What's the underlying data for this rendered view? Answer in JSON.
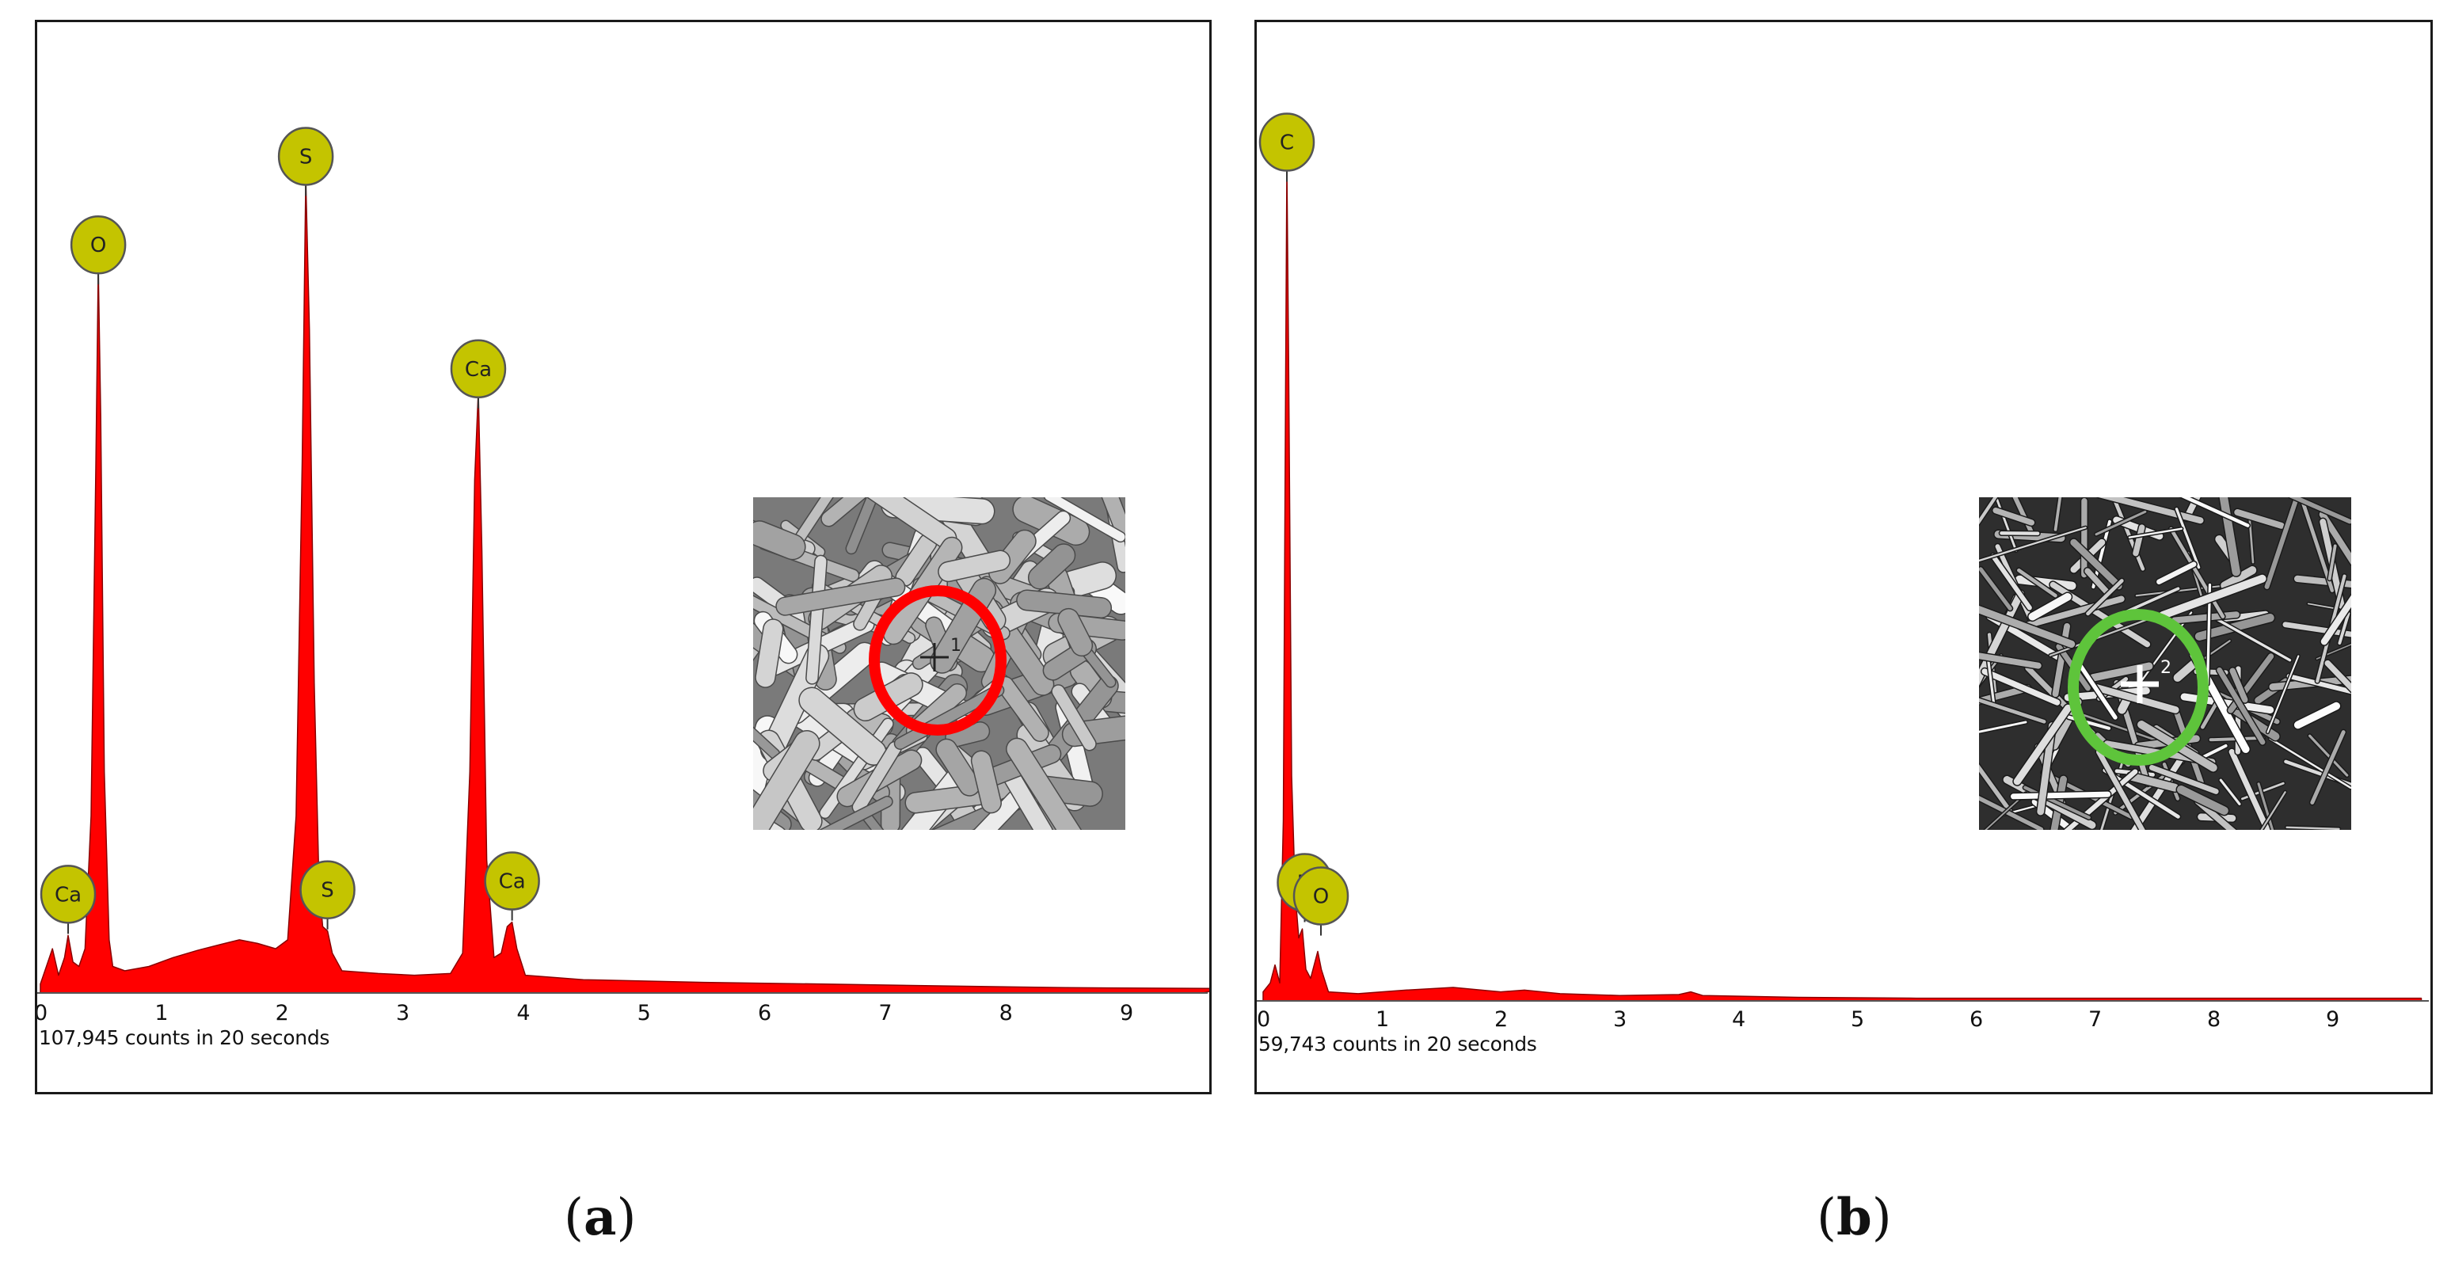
{
  "chart_data": [
    {
      "type": "area",
      "panel_label": "a",
      "footer": "107,945 counts in 20 seconds",
      "x_tick_labels": [
        "0",
        "1",
        "2",
        "3",
        "4",
        "5",
        "6",
        "7",
        "8",
        "9"
      ],
      "xlim": [
        0,
        9.8
      ],
      "ylim": [
        0,
        1
      ],
      "fill_color": "#ff0000",
      "series": [
        {
          "values": [
            [
              0,
              0.01
            ],
            [
              0.05,
              0.03
            ],
            [
              0.1,
              0.05
            ],
            [
              0.15,
              0.02
            ],
            [
              0.2,
              0.04
            ],
            [
              0.23,
              0.065
            ],
            [
              0.27,
              0.035
            ],
            [
              0.32,
              0.03
            ],
            [
              0.37,
              0.05
            ],
            [
              0.42,
              0.2
            ],
            [
              0.46,
              0.6
            ],
            [
              0.48,
              0.82
            ],
            [
              0.5,
              0.65
            ],
            [
              0.53,
              0.25
            ],
            [
              0.57,
              0.06
            ],
            [
              0.6,
              0.03
            ],
            [
              0.7,
              0.025
            ],
            [
              0.9,
              0.03
            ],
            [
              1.1,
              0.04
            ],
            [
              1.3,
              0.048
            ],
            [
              1.5,
              0.055
            ],
            [
              1.65,
              0.06
            ],
            [
              1.8,
              0.056
            ],
            [
              1.95,
              0.05
            ],
            [
              2.05,
              0.06
            ],
            [
              2.12,
              0.2
            ],
            [
              2.17,
              0.6
            ],
            [
              2.2,
              0.92
            ],
            [
              2.23,
              0.75
            ],
            [
              2.27,
              0.35
            ],
            [
              2.31,
              0.12
            ],
            [
              2.34,
              0.075
            ],
            [
              2.38,
              0.07
            ],
            [
              2.42,
              0.045
            ],
            [
              2.5,
              0.025
            ],
            [
              2.8,
              0.022
            ],
            [
              3.1,
              0.02
            ],
            [
              3.4,
              0.022
            ],
            [
              3.5,
              0.045
            ],
            [
              3.56,
              0.25
            ],
            [
              3.6,
              0.58
            ],
            [
              3.63,
              0.68
            ],
            [
              3.66,
              0.5
            ],
            [
              3.7,
              0.15
            ],
            [
              3.76,
              0.04
            ],
            [
              3.82,
              0.045
            ],
            [
              3.87,
              0.075
            ],
            [
              3.91,
              0.08
            ],
            [
              3.95,
              0.05
            ],
            [
              4.02,
              0.02
            ],
            [
              4.5,
              0.015
            ],
            [
              5.5,
              0.012
            ],
            [
              6.5,
              0.01
            ],
            [
              7.5,
              0.008
            ],
            [
              8.5,
              0.006
            ],
            [
              9.8,
              0.005
            ]
          ]
        }
      ],
      "peak_labels": [
        {
          "element": "Ca",
          "energy": 0.23,
          "height": 0.065
        },
        {
          "element": "O",
          "energy": 0.48,
          "height": 0.82
        },
        {
          "element": "S",
          "energy": 2.2,
          "height": 0.92
        },
        {
          "element": "S",
          "energy": 2.38,
          "height": 0.07
        },
        {
          "element": "Ca",
          "energy": 3.63,
          "height": 0.68
        },
        {
          "element": "Ca",
          "energy": 3.91,
          "height": 0.08
        }
      ],
      "inset": {
        "marker_color": "#ff0000",
        "marker_number": "1"
      }
    },
    {
      "type": "area",
      "panel_label": "b",
      "footer": "59,743 counts in 20 seconds",
      "x_tick_labels": [
        "0",
        "1",
        "2",
        "3",
        "4",
        "5",
        "6",
        "7",
        "8",
        "9"
      ],
      "xlim": [
        0,
        9.75
      ],
      "ylim": [
        0,
        1
      ],
      "fill_color": "#ff0000",
      "series": [
        {
          "values": [
            [
              0,
              0.01
            ],
            [
              0.06,
              0.02
            ],
            [
              0.1,
              0.04
            ],
            [
              0.14,
              0.02
            ],
            [
              0.17,
              0.2
            ],
            [
              0.19,
              0.7
            ],
            [
              0.2,
              0.93
            ],
            [
              0.215,
              0.7
            ],
            [
              0.24,
              0.25
            ],
            [
              0.27,
              0.12
            ],
            [
              0.3,
              0.07
            ],
            [
              0.33,
              0.08
            ],
            [
              0.36,
              0.035
            ],
            [
              0.4,
              0.025
            ],
            [
              0.43,
              0.04
            ],
            [
              0.46,
              0.055
            ],
            [
              0.49,
              0.035
            ],
            [
              0.55,
              0.01
            ],
            [
              0.8,
              0.008
            ],
            [
              1.2,
              0.012
            ],
            [
              1.6,
              0.015
            ],
            [
              2.0,
              0.01
            ],
            [
              2.2,
              0.012
            ],
            [
              2.5,
              0.008
            ],
            [
              3.0,
              0.006
            ],
            [
              3.5,
              0.007
            ],
            [
              3.6,
              0.01
            ],
            [
              3.7,
              0.006
            ],
            [
              4.5,
              0.004
            ],
            [
              5.5,
              0.003
            ],
            [
              7,
              0.003
            ],
            [
              9.75,
              0.003
            ]
          ]
        }
      ],
      "peak_labels": [
        {
          "element": "C",
          "energy": 0.2,
          "height": 0.93
        },
        {
          "element": "N",
          "energy": 0.31,
          "height": 0.07
        },
        {
          "element": "O",
          "energy": 0.46,
          "height": 0.055
        }
      ],
      "inset": {
        "marker_color": "#5ec43b",
        "marker_number": "2"
      }
    }
  ],
  "captions": [
    "a",
    "b"
  ]
}
